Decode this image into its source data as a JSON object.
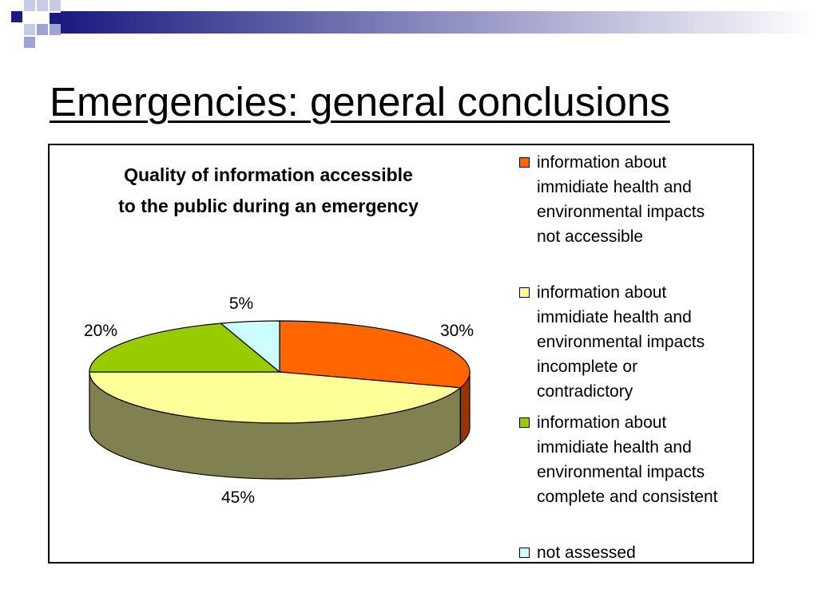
{
  "slide": {
    "title": "Emergencies: general conclusions"
  },
  "chart_data": {
    "type": "pie",
    "title_lines": [
      "Quality of information accessible",
      "to the public during an emergency"
    ],
    "categories": [
      "information about immidiate health and environmental impacts not accessible",
      "information about immidiate health and environmental impacts incomplete or contradictory",
      "information about immidiate health and environmental impacts complete and consistent",
      "not assessed"
    ],
    "values": [
      30,
      45,
      20,
      5
    ],
    "data_labels": [
      "30%",
      "45%",
      "20%",
      "5%"
    ],
    "colors": [
      "#ff6600",
      "#ffff99",
      "#99cc00",
      "#ccffff"
    ],
    "side_colors": [
      "#993300",
      "#808050",
      "#4d6600",
      "#668080"
    ],
    "legend_position": "right",
    "style": "3d"
  },
  "legend": {
    "items": [
      {
        "lines": [
          "information about",
          "immidiate health and",
          "environmental impacts",
          "not accessible"
        ]
      },
      {
        "lines": [
          "information about",
          "immidiate health and",
          "environmental impacts",
          "incomplete or",
          "contradictory"
        ]
      },
      {
        "lines": [
          "information about",
          "immidiate health and",
          "environmental impacts",
          "complete and consistent"
        ]
      },
      {
        "lines": [
          "not assessed"
        ]
      }
    ]
  }
}
